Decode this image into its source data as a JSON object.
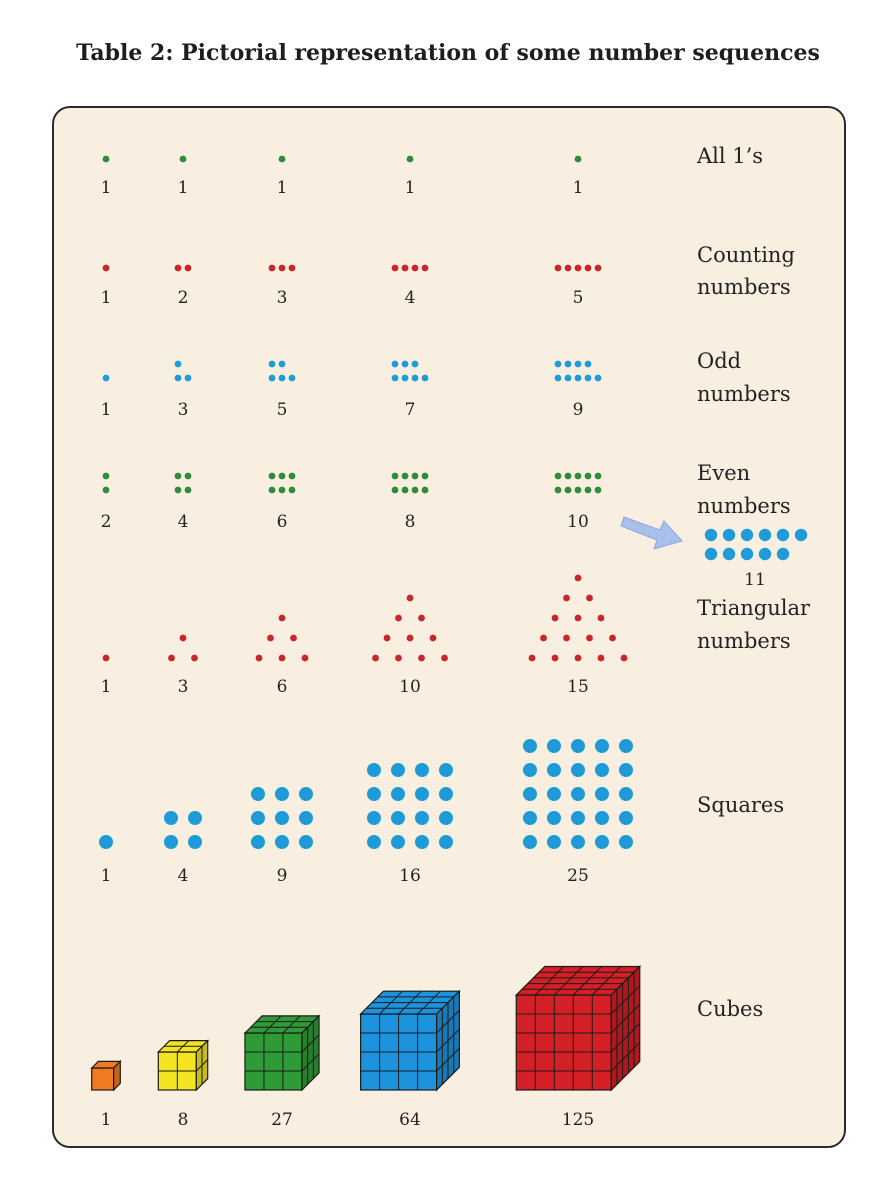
{
  "title": "Table 2: Pictorial representation of some number sequences",
  "colors": {
    "green": "#2e8b3a",
    "red": "#c8262b",
    "blue": "#1f9bd8",
    "arrow": "#a8c0ea",
    "cube_1": "#f07a22",
    "cube_2": "#f2e422",
    "cube_3": "#2e9b36",
    "cube_4": "#1e93dd",
    "cube_5": "#d41f26"
  },
  "rows": [
    {
      "id": "ones",
      "label_lines": [
        "All 1’s"
      ],
      "color": "green",
      "dot": "small",
      "shape": "single",
      "numbers": [
        1,
        1,
        1,
        1,
        1
      ]
    },
    {
      "id": "counting",
      "label_lines": [
        "Counting",
        "numbers"
      ],
      "color": "red",
      "dot": "small",
      "shape": "row",
      "numbers": [
        1,
        2,
        3,
        4,
        5
      ]
    },
    {
      "id": "odd",
      "label_lines": [
        "Odd",
        "numbers"
      ],
      "color": "blue",
      "dot": "small",
      "shape": "odd",
      "numbers": [
        1,
        3,
        5,
        7,
        9
      ]
    },
    {
      "id": "even",
      "label_lines": [
        "Even",
        "numbers"
      ],
      "color": "green",
      "dot": "small",
      "shape": "even",
      "numbers": [
        2,
        4,
        6,
        8,
        10
      ]
    },
    {
      "id": "triangular",
      "label_lines": [
        "Triangular",
        "numbers"
      ],
      "color": "red",
      "dot": "small",
      "shape": "triangle",
      "numbers": [
        1,
        3,
        6,
        10,
        15
      ]
    },
    {
      "id": "squares",
      "label_lines": [
        "Squares"
      ],
      "color": "blue",
      "dot": "large",
      "shape": "square",
      "numbers": [
        1,
        4,
        9,
        16,
        25
      ]
    },
    {
      "id": "cubes",
      "label_lines": [
        "Cubes"
      ],
      "color": "multi",
      "dot": "none",
      "shape": "cube",
      "numbers": [
        1,
        8,
        27,
        64,
        125
      ]
    }
  ],
  "callout": {
    "value": 11,
    "color": "blue",
    "note_arrow": "arrow-from-10-to-11"
  }
}
